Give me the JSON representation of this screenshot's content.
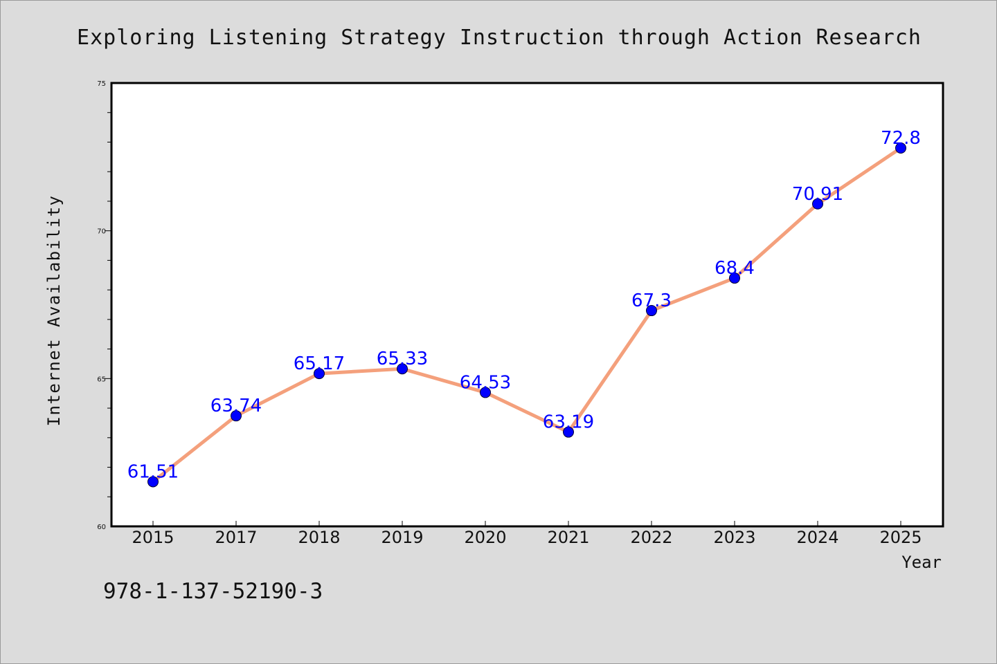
{
  "chart_data": {
    "type": "line",
    "title": "Exploring Listening Strategy Instruction through Action Research",
    "xlabel": "Year",
    "ylabel": "Internet Availability",
    "categories": [
      "2015",
      "2017",
      "2018",
      "2019",
      "2020",
      "2021",
      "2022",
      "2023",
      "2024",
      "2025"
    ],
    "values": [
      61.51,
      63.74,
      65.17,
      65.33,
      64.53,
      63.19,
      67.3,
      68.4,
      70.91,
      72.8
    ],
    "data_labels": [
      "61.51",
      "63.74",
      "65.17",
      "65.33",
      "64.53",
      "63.19",
      "67.3",
      "68.4",
      "70.91",
      "72.8"
    ],
    "ylim": [
      60,
      75
    ],
    "yticks": [
      60,
      65,
      70,
      75
    ],
    "ytick_labels": [
      "60",
      "65",
      "70",
      "75"
    ],
    "grid": false,
    "line_color": "#f4a07c",
    "marker_color": "#0000ff",
    "label_color": "#0000ff",
    "background_color": "#dcdcdc",
    "plot_background": "#ffffff"
  },
  "footer_text": "978-1-137-52190-3"
}
